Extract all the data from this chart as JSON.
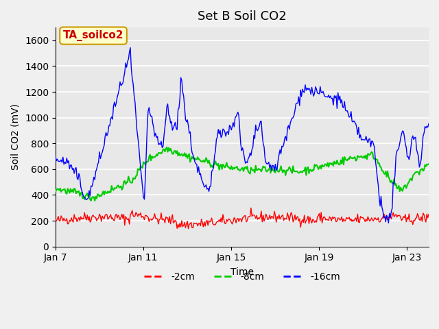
{
  "title": "Set B Soil CO2",
  "xlabel": "Time",
  "ylabel": "Soil CO2 (mV)",
  "ylim": [
    0,
    1700
  ],
  "yticks": [
    0,
    200,
    400,
    600,
    800,
    1000,
    1200,
    1400,
    1600
  ],
  "background_color": "#e8e8e8",
  "plot_bg_color": "#e8e8e8",
  "line_colors": {
    "2cm": "#ff0000",
    "8cm": "#00cc00",
    "16cm": "#0000ff"
  },
  "legend_labels": [
    "-2cm",
    "-8cm",
    "-16cm"
  ],
  "annotation_text": "TA_soilco2",
  "annotation_color": "#cc0000",
  "annotation_bg": "#ffffcc",
  "annotation_border": "#cc9900",
  "xtick_labels": [
    "Jan 7",
    "Jan 11",
    "Jan 15",
    "Jan 19",
    "Jan 23"
  ],
  "xtick_positions": [
    0,
    4,
    8,
    12,
    16
  ]
}
